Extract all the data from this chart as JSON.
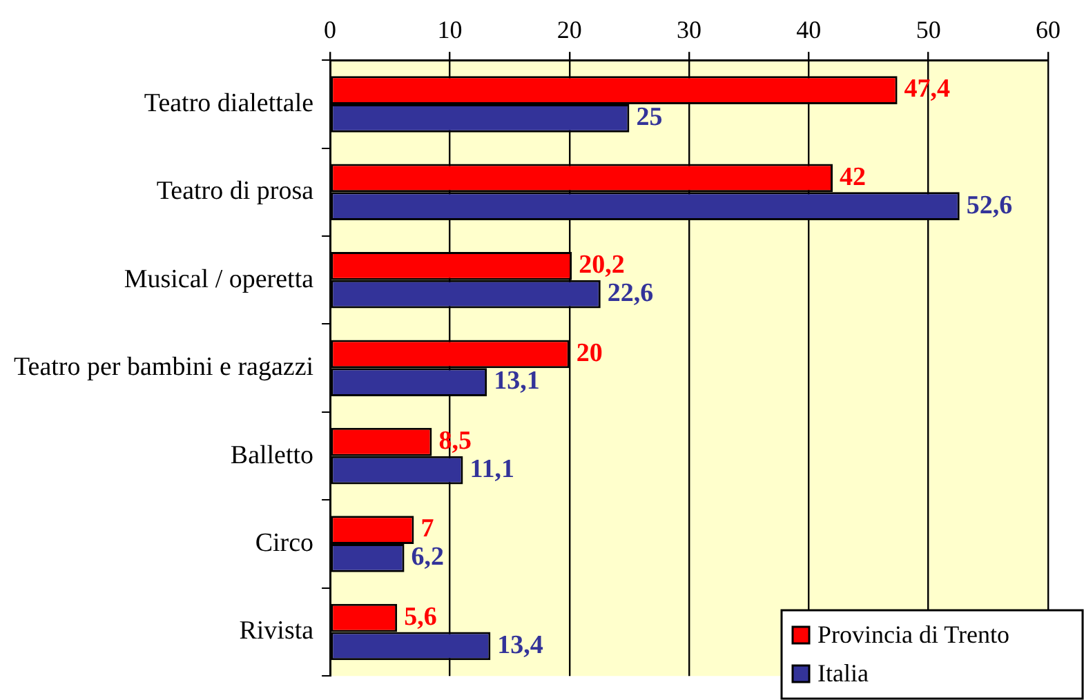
{
  "chart_data": {
    "type": "bar",
    "orientation": "horizontal",
    "categories": [
      "Teatro dialettale",
      "Teatro di prosa",
      "Musical / operetta",
      "Teatro per bambini e ragazzi",
      "Balletto",
      "Circo",
      "Rivista"
    ],
    "series": [
      {
        "name": "Provincia di Trento",
        "color": "#ff0000",
        "values": [
          47.4,
          42,
          20.2,
          20,
          8.5,
          7,
          5.6
        ],
        "value_labels": [
          "47,4",
          "42",
          "20,2",
          "20",
          "8,5",
          "7",
          "5,6"
        ]
      },
      {
        "name": "Italia",
        "color": "#333399",
        "values": [
          25,
          52.6,
          22.6,
          13.1,
          11.1,
          6.2,
          13.4
        ],
        "value_labels": [
          "25",
          "52,6",
          "22,6",
          "13,1",
          "11,1",
          "6,2",
          "13,4"
        ]
      }
    ],
    "xlim": [
      0,
      60
    ],
    "xticks": [
      0,
      10,
      20,
      30,
      40,
      50,
      60
    ],
    "grid": "x",
    "legend": "bottom right"
  }
}
